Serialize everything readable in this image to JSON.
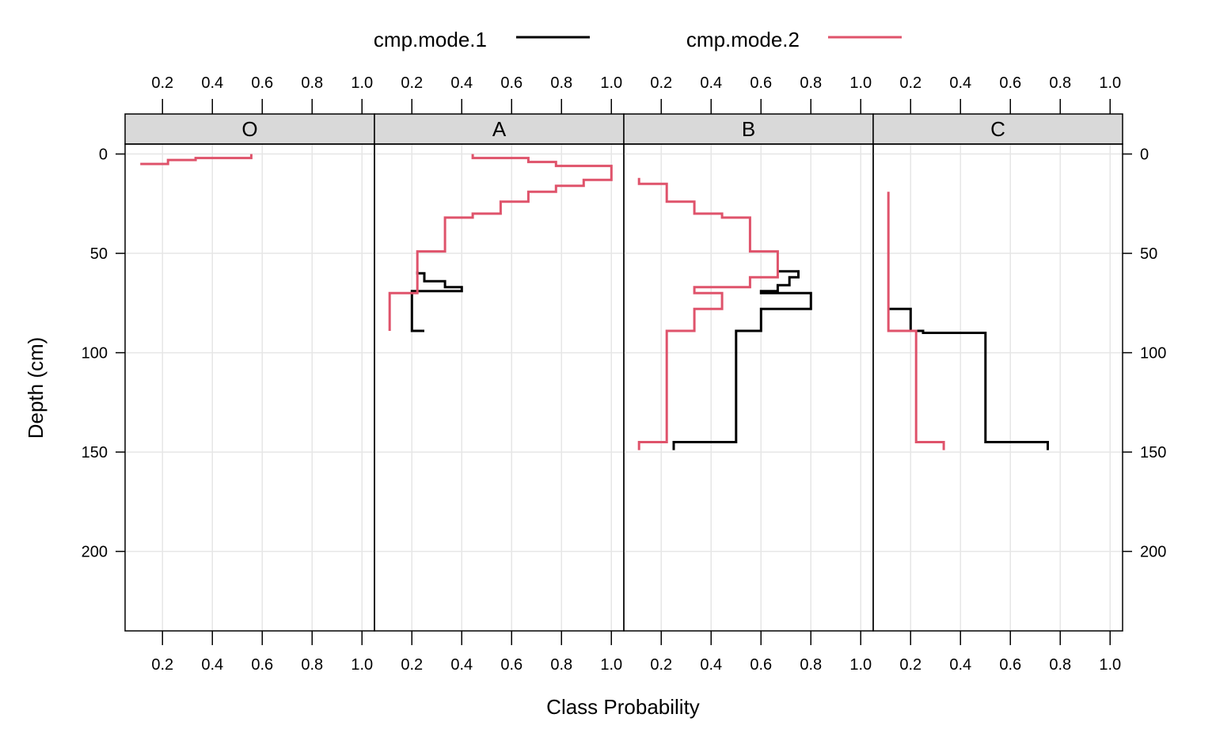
{
  "chart_data": {
    "type": "line",
    "xlabel": "Class Probability",
    "ylabel": "Depth (cm)",
    "xlim": [
      0.05,
      1.05
    ],
    "ylim": [
      240,
      -5
    ],
    "x_ticks": [
      "0.2",
      "0.4",
      "0.6",
      "0.8",
      "1.0"
    ],
    "y_ticks": [
      "0",
      "50",
      "100",
      "150",
      "200"
    ],
    "grid": true,
    "legend_position": "top",
    "legend": [
      {
        "name": "cmp.mode.1",
        "color": "#000000"
      },
      {
        "name": "cmp.mode.2",
        "color": "#DF536B"
      }
    ],
    "panels": [
      {
        "label": "O",
        "series": [
          {
            "name": "cmp.mode.2",
            "color": "#DF536B",
            "points": [
              [
                0.556,
                0
              ],
              [
                0.556,
                2
              ],
              [
                0.333,
                2
              ],
              [
                0.333,
                3
              ],
              [
                0.222,
                3
              ],
              [
                0.222,
                5
              ],
              [
                0.111,
                5
              ]
            ]
          }
        ]
      },
      {
        "label": "A",
        "series": [
          {
            "name": "cmp.mode.1",
            "color": "#000000",
            "points": [
              [
                0.222,
                59
              ],
              [
                0.222,
                60
              ],
              [
                0.25,
                60
              ],
              [
                0.25,
                64
              ],
              [
                0.333,
                64
              ],
              [
                0.333,
                67
              ],
              [
                0.4,
                67
              ],
              [
                0.4,
                69
              ],
              [
                0.2,
                69
              ],
              [
                0.2,
                89
              ],
              [
                0.25,
                89
              ]
            ]
          },
          {
            "name": "cmp.mode.2",
            "color": "#DF536B",
            "points": [
              [
                0.444,
                0
              ],
              [
                0.444,
                2
              ],
              [
                0.667,
                2
              ],
              [
                0.667,
                4
              ],
              [
                0.778,
                4
              ],
              [
                0.778,
                6
              ],
              [
                1.0,
                6
              ],
              [
                1.0,
                13
              ],
              [
                0.889,
                13
              ],
              [
                0.889,
                16
              ],
              [
                0.778,
                16
              ],
              [
                0.778,
                19
              ],
              [
                0.667,
                19
              ],
              [
                0.667,
                24
              ],
              [
                0.556,
                24
              ],
              [
                0.556,
                30
              ],
              [
                0.444,
                30
              ],
              [
                0.444,
                32
              ],
              [
                0.333,
                32
              ],
              [
                0.333,
                49
              ],
              [
                0.222,
                49
              ],
              [
                0.222,
                70
              ],
              [
                0.111,
                70
              ],
              [
                0.111,
                89
              ]
            ]
          }
        ]
      },
      {
        "label": "B",
        "series": [
          {
            "name": "cmp.mode.1",
            "color": "#000000",
            "points": [
              [
                0.667,
                59
              ],
              [
                0.75,
                59
              ],
              [
                0.75,
                62
              ],
              [
                0.714,
                62
              ],
              [
                0.714,
                66
              ],
              [
                0.667,
                66
              ],
              [
                0.667,
                69
              ],
              [
                0.6,
                69
              ],
              [
                0.6,
                70
              ],
              [
                0.8,
                70
              ],
              [
                0.8,
                78
              ],
              [
                0.6,
                78
              ],
              [
                0.6,
                89
              ],
              [
                0.5,
                89
              ],
              [
                0.5,
                145
              ],
              [
                0.25,
                145
              ],
              [
                0.25,
                149
              ]
            ]
          },
          {
            "name": "cmp.mode.2",
            "color": "#DF536B",
            "points": [
              [
                0.111,
                12
              ],
              [
                0.111,
                15
              ],
              [
                0.222,
                15
              ],
              [
                0.222,
                24
              ],
              [
                0.333,
                24
              ],
              [
                0.333,
                30
              ],
              [
                0.444,
                30
              ],
              [
                0.444,
                32
              ],
              [
                0.556,
                32
              ],
              [
                0.556,
                49
              ],
              [
                0.667,
                49
              ],
              [
                0.667,
                62
              ],
              [
                0.556,
                62
              ],
              [
                0.556,
                67
              ],
              [
                0.333,
                67
              ],
              [
                0.333,
                70
              ],
              [
                0.444,
                70
              ],
              [
                0.444,
                78
              ],
              [
                0.333,
                78
              ],
              [
                0.333,
                89
              ],
              [
                0.222,
                89
              ],
              [
                0.222,
                145
              ],
              [
                0.111,
                145
              ],
              [
                0.111,
                149
              ]
            ]
          }
        ]
      },
      {
        "label": "C",
        "series": [
          {
            "name": "cmp.mode.1",
            "color": "#000000",
            "points": [
              [
                0.111,
                78
              ],
              [
                0.2,
                78
              ],
              [
                0.2,
                89
              ],
              [
                0.25,
                89
              ],
              [
                0.25,
                90
              ],
              [
                0.5,
                90
              ],
              [
                0.5,
                145
              ],
              [
                0.75,
                145
              ],
              [
                0.75,
                149
              ]
            ]
          },
          {
            "name": "cmp.mode.2",
            "color": "#DF536B",
            "points": [
              [
                0.111,
                19
              ],
              [
                0.111,
                89
              ],
              [
                0.222,
                89
              ],
              [
                0.222,
                145
              ],
              [
                0.333,
                145
              ],
              [
                0.333,
                149
              ]
            ]
          }
        ]
      }
    ]
  }
}
